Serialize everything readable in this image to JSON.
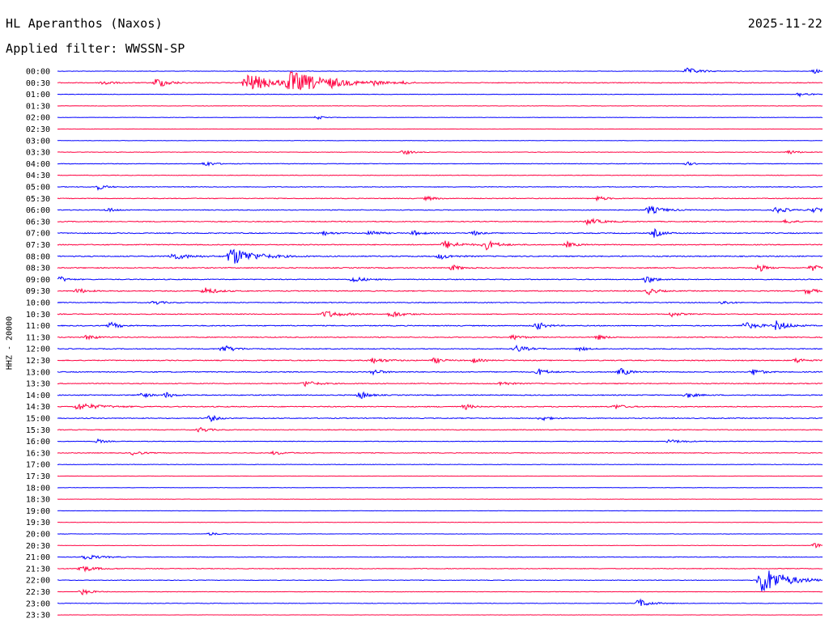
{
  "header": {
    "station": "HL Aperanthos (Naxos)",
    "date": "2025-11-22",
    "filter": "Applied filter: WWSSN-SP"
  },
  "chart_data": {
    "type": "line",
    "title": "HL Aperanthos (Naxos)",
    "subtitle": "Applied filter: WWSSN-SP",
    "date": "2025-11-22",
    "ylabel": "HHZ - 20000",
    "xlim": [
      0,
      30
    ],
    "colors": [
      "#0000ff",
      "#ff0040"
    ],
    "x_unit": "minutes after trace start",
    "rows": [
      {
        "label": "00:00",
        "color": "#0000ff",
        "noise": 0.3,
        "events": [
          [
            24.7,
            5,
            0.9
          ],
          [
            29.7,
            3,
            0.6
          ]
        ]
      },
      {
        "label": "00:30",
        "color": "#ff0040",
        "noise": 0.45,
        "events": [
          [
            1.8,
            3,
            0.8
          ],
          [
            3.9,
            4,
            1.6
          ],
          [
            7.4,
            10,
            2.8
          ],
          [
            9.1,
            14,
            3.0
          ],
          [
            10.8,
            3,
            0.6
          ],
          [
            12.4,
            2,
            0.5
          ],
          [
            13.6,
            2,
            0.5
          ]
        ]
      },
      {
        "label": "01:00",
        "color": "#0000ff",
        "noise": 0.3,
        "events": [
          [
            29.1,
            3,
            0.7
          ]
        ]
      },
      {
        "label": "01:30",
        "color": "#ff0040",
        "noise": 0.25,
        "events": []
      },
      {
        "label": "02:00",
        "color": "#0000ff",
        "noise": 0.2,
        "events": [
          [
            10.2,
            3,
            0.5
          ]
        ]
      },
      {
        "label": "02:30",
        "color": "#ff0040",
        "noise": 0.2,
        "events": []
      },
      {
        "label": "03:00",
        "color": "#0000ff",
        "noise": 0.2,
        "events": []
      },
      {
        "label": "03:30",
        "color": "#ff0040",
        "noise": 0.3,
        "events": [
          [
            13.6,
            3,
            0.7
          ],
          [
            28.7,
            3,
            0.6
          ]
        ]
      },
      {
        "label": "04:00",
        "color": "#0000ff",
        "noise": 0.35,
        "events": [
          [
            5.8,
            3,
            0.8
          ],
          [
            24.7,
            2,
            0.5
          ]
        ]
      },
      {
        "label": "04:30",
        "color": "#ff0040",
        "noise": 0.3,
        "events": []
      },
      {
        "label": "05:00",
        "color": "#0000ff",
        "noise": 0.4,
        "events": [
          [
            1.6,
            3,
            0.8
          ]
        ]
      },
      {
        "label": "05:30",
        "color": "#ff0040",
        "noise": 0.45,
        "events": [
          [
            14.5,
            3,
            0.6
          ],
          [
            21.2,
            3,
            0.7
          ]
        ]
      },
      {
        "label": "06:00",
        "color": "#0000ff",
        "noise": 0.45,
        "events": [
          [
            2.0,
            3,
            0.6
          ],
          [
            23.2,
            5,
            1.2
          ],
          [
            28.2,
            4,
            0.9
          ],
          [
            29.6,
            3,
            0.9
          ]
        ]
      },
      {
        "label": "06:30",
        "color": "#ff0040",
        "noise": 0.5,
        "events": [
          [
            20.8,
            5,
            0.9
          ],
          [
            28.6,
            3,
            0.6
          ]
        ]
      },
      {
        "label": "07:00",
        "color": "#0000ff",
        "noise": 0.55,
        "events": [
          [
            10.4,
            3,
            0.7
          ],
          [
            12.3,
            3,
            0.9
          ],
          [
            14.0,
            3,
            0.7
          ],
          [
            16.3,
            2,
            0.7
          ],
          [
            23.4,
            3,
            1.2
          ]
        ]
      },
      {
        "label": "07:30",
        "color": "#ff0040",
        "noise": 0.55,
        "events": [
          [
            15.2,
            5,
            1.2
          ],
          [
            16.8,
            4,
            1.4
          ],
          [
            20.0,
            3,
            0.8
          ]
        ]
      },
      {
        "label": "08:00",
        "color": "#0000ff",
        "noise": 0.6,
        "events": [
          [
            4.5,
            6,
            1.0
          ],
          [
            6.8,
            8,
            2.8
          ],
          [
            15.0,
            4,
            0.8
          ]
        ]
      },
      {
        "label": "08:30",
        "color": "#ff0040",
        "noise": 0.55,
        "events": [
          [
            15.5,
            3,
            0.8
          ],
          [
            27.5,
            2,
            1.2
          ],
          [
            29.6,
            3,
            0.9
          ]
        ]
      },
      {
        "label": "09:00",
        "color": "#0000ff",
        "noise": 0.5,
        "events": [
          [
            0.1,
            2,
            0.9
          ],
          [
            11.6,
            4,
            0.9
          ],
          [
            23.1,
            3,
            1.2
          ]
        ]
      },
      {
        "label": "09:30",
        "color": "#ff0040",
        "noise": 0.55,
        "events": [
          [
            0.8,
            3,
            0.8
          ],
          [
            5.8,
            4,
            1.0
          ],
          [
            23.2,
            3,
            1.0
          ],
          [
            29.4,
            3,
            0.9
          ]
        ]
      },
      {
        "label": "10:00",
        "color": "#0000ff",
        "noise": 0.5,
        "events": [
          [
            3.8,
            3,
            0.6
          ],
          [
            26.1,
            2,
            0.6
          ]
        ]
      },
      {
        "label": "10:30",
        "color": "#ff0040",
        "noise": 0.5,
        "events": [
          [
            10.5,
            6,
            1.0
          ],
          [
            13.1,
            4,
            1.0
          ],
          [
            24.1,
            3,
            0.7
          ]
        ]
      },
      {
        "label": "11:00",
        "color": "#0000ff",
        "noise": 0.55,
        "events": [
          [
            2.1,
            3,
            1.0
          ],
          [
            18.8,
            3,
            1.2
          ],
          [
            26.9,
            6,
            1.0
          ],
          [
            28.2,
            4,
            1.4
          ]
        ]
      },
      {
        "label": "11:30",
        "color": "#ff0040",
        "noise": 0.5,
        "events": [
          [
            1.2,
            3,
            0.8
          ],
          [
            17.9,
            3,
            0.8
          ],
          [
            21.2,
            3,
            0.7
          ]
        ]
      },
      {
        "label": "12:00",
        "color": "#0000ff",
        "noise": 0.5,
        "events": [
          [
            6.5,
            4,
            1.1
          ],
          [
            18.0,
            4,
            1.0
          ],
          [
            20.5,
            2,
            0.6
          ]
        ]
      },
      {
        "label": "12:30",
        "color": "#ff0040",
        "noise": 0.55,
        "events": [
          [
            12.3,
            5,
            0.8
          ],
          [
            14.8,
            3,
            0.8
          ],
          [
            16.3,
            3,
            0.7
          ],
          [
            29.0,
            3,
            0.7
          ]
        ]
      },
      {
        "label": "13:00",
        "color": "#0000ff",
        "noise": 0.55,
        "events": [
          [
            12.4,
            3,
            0.8
          ],
          [
            18.9,
            3,
            1.0
          ],
          [
            22.1,
            3,
            1.2
          ],
          [
            27.3,
            3,
            1.0
          ]
        ]
      },
      {
        "label": "13:30",
        "color": "#ff0040",
        "noise": 0.5,
        "events": [
          [
            9.7,
            4,
            0.9
          ],
          [
            17.4,
            3,
            0.7
          ]
        ]
      },
      {
        "label": "14:00",
        "color": "#0000ff",
        "noise": 0.55,
        "events": [
          [
            3.3,
            1,
            0.9
          ],
          [
            4.3,
            1,
            0.8
          ],
          [
            11.9,
            2,
            1.3
          ],
          [
            24.7,
            3,
            0.8
          ]
        ]
      },
      {
        "label": "14:30",
        "color": "#ff0040",
        "noise": 0.55,
        "events": [
          [
            0.8,
            8,
            1.0
          ],
          [
            16.0,
            2,
            0.8
          ],
          [
            21.9,
            3,
            0.7
          ]
        ]
      },
      {
        "label": "15:00",
        "color": "#0000ff",
        "noise": 0.5,
        "events": [
          [
            6.0,
            2,
            1.0
          ],
          [
            19.0,
            3,
            0.7
          ]
        ]
      },
      {
        "label": "15:30",
        "color": "#ff0040",
        "noise": 0.45,
        "events": [
          [
            5.6,
            3,
            0.8
          ]
        ]
      },
      {
        "label": "16:00",
        "color": "#0000ff",
        "noise": 0.35,
        "events": [
          [
            1.6,
            1,
            0.6
          ],
          [
            24.0,
            6,
            0.5
          ]
        ]
      },
      {
        "label": "16:30",
        "color": "#ff0040",
        "noise": 0.4,
        "events": [
          [
            3.0,
            3,
            0.7
          ],
          [
            8.5,
            4,
            0.5
          ]
        ]
      },
      {
        "label": "17:00",
        "color": "#0000ff",
        "noise": 0.3,
        "events": []
      },
      {
        "label": "17:30",
        "color": "#ff0040",
        "noise": 0.2,
        "events": []
      },
      {
        "label": "18:00",
        "color": "#0000ff",
        "noise": 0.2,
        "events": []
      },
      {
        "label": "18:30",
        "color": "#ff0040",
        "noise": 0.2,
        "events": []
      },
      {
        "label": "19:00",
        "color": "#0000ff",
        "noise": 0.2,
        "events": []
      },
      {
        "label": "19:30",
        "color": "#ff0040",
        "noise": 0.2,
        "events": []
      },
      {
        "label": "20:00",
        "color": "#0000ff",
        "noise": 0.25,
        "events": [
          [
            6.0,
            1,
            0.5
          ]
        ]
      },
      {
        "label": "20:30",
        "color": "#ff0040",
        "noise": 0.2,
        "events": [
          [
            29.7,
            1,
            0.8
          ]
        ]
      },
      {
        "label": "21:00",
        "color": "#0000ff",
        "noise": 0.35,
        "events": [
          [
            1.0,
            6,
            0.8
          ]
        ]
      },
      {
        "label": "21:30",
        "color": "#ff0040",
        "noise": 0.4,
        "events": [
          [
            0.9,
            5,
            1.0
          ]
        ]
      },
      {
        "label": "22:00",
        "color": "#0000ff",
        "noise": 0.35,
        "events": [
          [
            27.6,
            8,
            4.5
          ]
        ]
      },
      {
        "label": "22:30",
        "color": "#ff0040",
        "noise": 0.3,
        "events": [
          [
            1.0,
            3,
            0.9
          ]
        ]
      },
      {
        "label": "23:00",
        "color": "#0000ff",
        "noise": 0.3,
        "events": [
          [
            22.8,
            4,
            1.3
          ]
        ]
      },
      {
        "label": "23:30",
        "color": "#ff0040",
        "noise": 0.2,
        "events": []
      }
    ]
  }
}
